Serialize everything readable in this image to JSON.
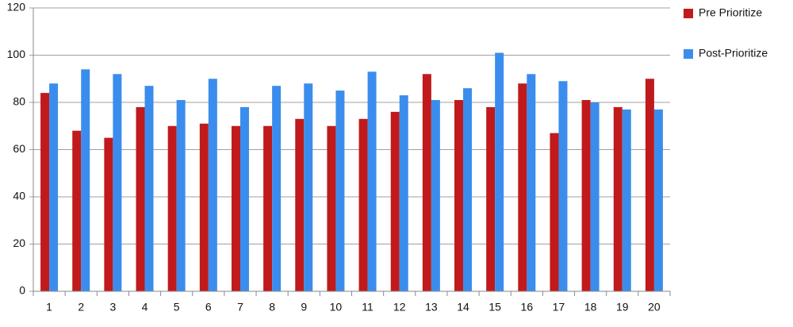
{
  "chart_data": {
    "type": "bar",
    "categories": [
      "1",
      "2",
      "3",
      "4",
      "5",
      "6",
      "7",
      "8",
      "9",
      "10",
      "11",
      "12",
      "13",
      "14",
      "15",
      "16",
      "17",
      "18",
      "19",
      "20"
    ],
    "series": [
      {
        "name": "Pre Prioritize",
        "color": "#c01a1c",
        "values": [
          84,
          68,
          65,
          78,
          70,
          71,
          70,
          70,
          73,
          70,
          73,
          76,
          92,
          81,
          78,
          88,
          67,
          81,
          78,
          90
        ]
      },
      {
        "name": "Post-Prioritize",
        "color": "#3b8ded",
        "values": [
          88,
          94,
          92,
          87,
          81,
          90,
          78,
          87,
          88,
          85,
          93,
          83,
          81,
          86,
          101,
          92,
          89,
          80,
          77,
          77
        ]
      }
    ],
    "ylim": [
      0,
      120
    ],
    "yticks": [
      0,
      20,
      40,
      60,
      80,
      100,
      120
    ],
    "grid": true,
    "legend": "right"
  }
}
